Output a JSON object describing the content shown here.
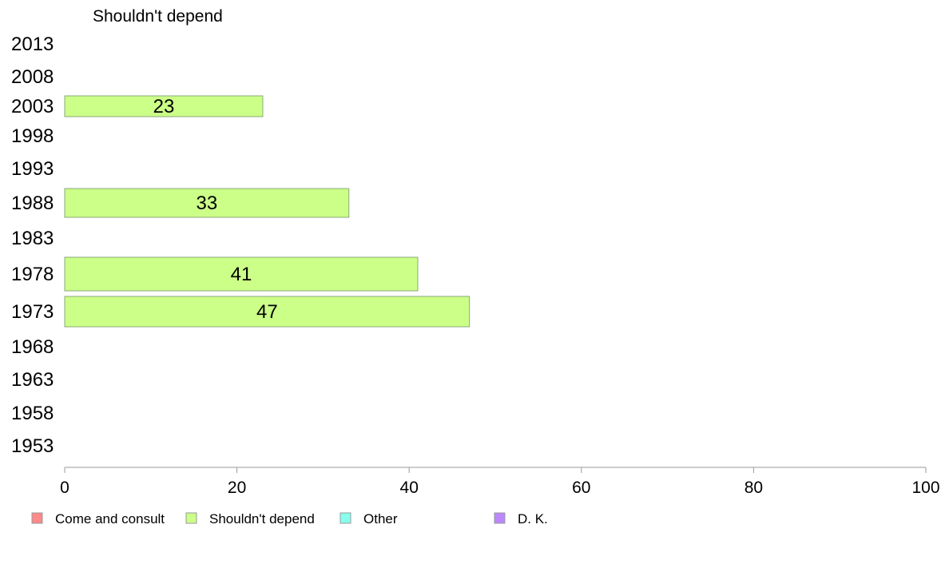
{
  "chart_data": {
    "type": "bar",
    "orientation": "horizontal",
    "title": "Shouldn't depend",
    "xlabel": "",
    "ylabel": "",
    "xlim": [
      0,
      100
    ],
    "x_ticks": [
      "0",
      "20",
      "40",
      "60",
      "80",
      "100"
    ],
    "categories": [
      "2013",
      "2008",
      "2003",
      "1998",
      "1993",
      "1988",
      "1983",
      "1978",
      "1973",
      "1968",
      "1963",
      "1958",
      "1953"
    ],
    "series": [
      {
        "name": "Shouldn't depend",
        "color": "#ccff88",
        "values": [
          null,
          null,
          23,
          null,
          null,
          33,
          null,
          41,
          47,
          null,
          null,
          null,
          null
        ],
        "labels": [
          "",
          "",
          "23",
          "",
          "",
          "33",
          "",
          "41",
          "47",
          "",
          "",
          "",
          ""
        ]
      }
    ],
    "legend": {
      "placement": "bottom-left",
      "entries": [
        {
          "label": "Come and consult",
          "color": "#ff8888"
        },
        {
          "label": "Shouldn't depend",
          "color": "#ccff88"
        },
        {
          "label": "Other",
          "color": "#88ffee"
        },
        {
          "label": "D. K.",
          "color": "#bb88ff"
        }
      ]
    },
    "grid": false
  }
}
